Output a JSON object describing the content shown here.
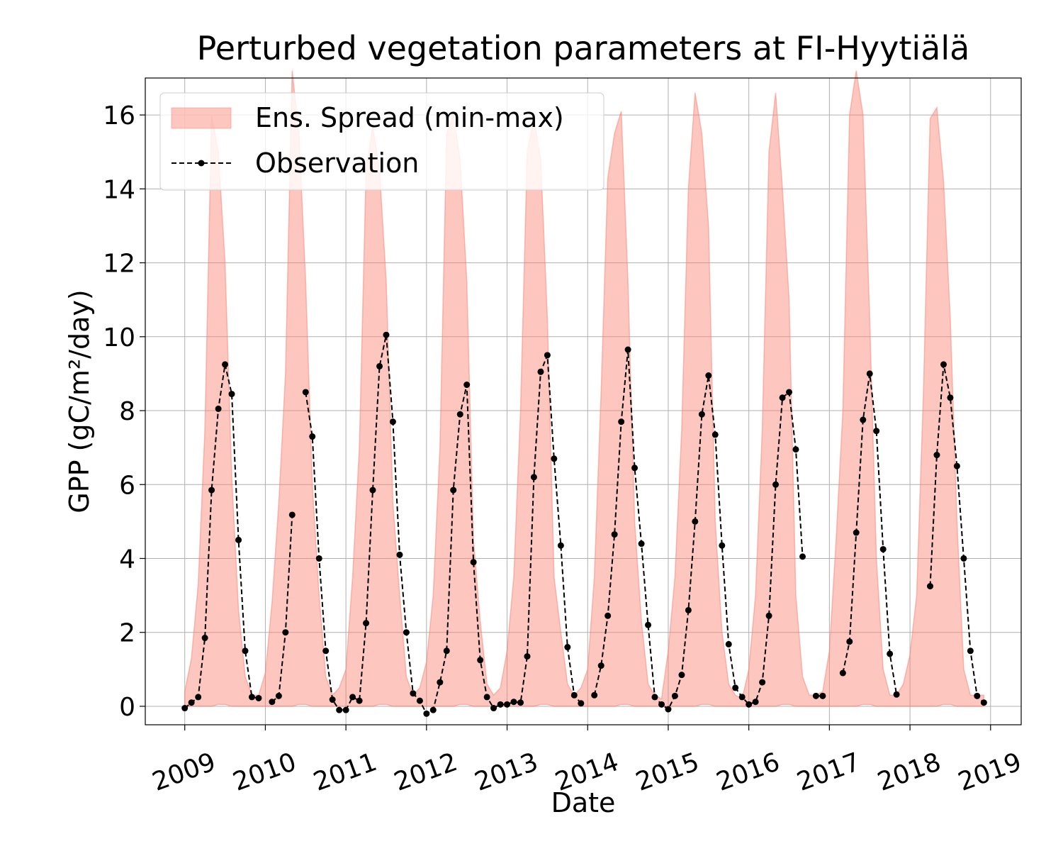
{
  "chart_data": {
    "type": "line",
    "title": "Perturbed vegetation parameters at FI-Hyytiälä",
    "xlabel": "Date",
    "ylabel": "GPP  (gC/m²/day)",
    "xlim": [
      2008.51,
      2019.38
    ],
    "ylim": [
      -0.5,
      17
    ],
    "xticks": [
      2009,
      2010,
      2011,
      2012,
      2013,
      2014,
      2015,
      2016,
      2017,
      2018,
      2019
    ],
    "yticks": [
      0,
      2,
      4,
      6,
      8,
      10,
      12,
      14,
      16
    ],
    "grid": true,
    "legend": "upper left",
    "x": [
      2009,
      2009.083,
      2009.167,
      2009.25,
      2009.333,
      2009.417,
      2009.5,
      2009.583,
      2009.667,
      2009.75,
      2009.833,
      2009.917,
      2010,
      2010.083,
      2010.167,
      2010.25,
      2010.333,
      2010.417,
      2010.5,
      2010.583,
      2010.667,
      2010.75,
      2010.833,
      2010.917,
      2011,
      2011.083,
      2011.167,
      2011.25,
      2011.333,
      2011.417,
      2011.5,
      2011.583,
      2011.667,
      2011.75,
      2011.833,
      2011.917,
      2012,
      2012.083,
      2012.167,
      2012.25,
      2012.333,
      2012.417,
      2012.5,
      2012.583,
      2012.667,
      2012.75,
      2012.833,
      2012.917,
      2013,
      2013.083,
      2013.167,
      2013.25,
      2013.333,
      2013.417,
      2013.5,
      2013.583,
      2013.667,
      2013.75,
      2013.833,
      2013.917,
      2014,
      2014.083,
      2014.167,
      2014.25,
      2014.333,
      2014.417,
      2014.5,
      2014.583,
      2014.667,
      2014.75,
      2014.833,
      2014.917,
      2015,
      2015.083,
      2015.167,
      2015.25,
      2015.333,
      2015.417,
      2015.5,
      2015.583,
      2015.667,
      2015.75,
      2015.833,
      2015.917,
      2016,
      2016.083,
      2016.167,
      2016.25,
      2016.333,
      2016.417,
      2016.5,
      2016.583,
      2016.667,
      2016.75,
      2016.833,
      2016.917,
      2017,
      2017.083,
      2017.167,
      2017.25,
      2017.333,
      2017.417,
      2017.5,
      2017.583,
      2017.667,
      2017.75,
      2017.833,
      2017.917,
      2018,
      2018.083,
      2018.167,
      2018.25,
      2018.333,
      2018.417,
      2018.5,
      2018.583,
      2018.667,
      2018.75,
      2018.833,
      2018.917
    ],
    "series": [
      {
        "name": "Ens. Spread (min-max)",
        "kind": "band",
        "color": "#fa8072",
        "max": [
          0.4,
          1.3,
          3.3,
          7.5,
          16.0,
          15.0,
          12.0,
          6.2,
          2.6,
          0.8,
          0.3,
          0.3,
          0.9,
          2.8,
          5.5,
          9.0,
          17.2,
          15.5,
          11.5,
          6.0,
          3.0,
          0.8,
          0.3,
          0.5,
          1.0,
          3.5,
          7.0,
          14.5,
          15.7,
          14.5,
          11.5,
          5.5,
          3.0,
          0.8,
          0.3,
          0.5,
          1.2,
          3.0,
          7.0,
          15.5,
          16.0,
          14.8,
          11.5,
          4.5,
          2.3,
          0.6,
          0.3,
          0.5,
          1.5,
          3.5,
          8.0,
          15.0,
          15.9,
          14.8,
          10.5,
          3.5,
          2.0,
          0.6,
          0.3,
          0.5,
          1.0,
          3.5,
          8.5,
          14.3,
          15.5,
          16.1,
          11.5,
          5.0,
          2.3,
          0.6,
          0.3,
          0.2,
          1.5,
          3.5,
          7.5,
          14.0,
          16.6,
          15.5,
          13.0,
          5.0,
          2.0,
          0.6,
          0.3,
          0.2,
          1.0,
          3.0,
          7.5,
          15.0,
          16.6,
          14.0,
          11.0,
          3.0,
          0.8,
          0.3,
          0.3,
          0.4,
          1.5,
          4.5,
          8.0,
          16.0,
          17.2,
          16.0,
          10.5,
          4.0,
          1.0,
          0.3,
          0.3,
          0.6,
          1.4,
          3.0,
          8.5,
          15.9,
          16.2,
          14.2,
          10.5,
          5.0,
          1.0,
          0.3,
          0.3,
          0.3
        ],
        "min": [
          0,
          0,
          0,
          0,
          0,
          0.05,
          0.05,
          0,
          0,
          0,
          0,
          0,
          0,
          0,
          0,
          0,
          0,
          0.05,
          0.05,
          0,
          0,
          0,
          0,
          0,
          0,
          0,
          0,
          0,
          0,
          0.05,
          0.05,
          0,
          0,
          0,
          0,
          0,
          0,
          0,
          0,
          0,
          0,
          0.05,
          0.05,
          0,
          0,
          0,
          0,
          0,
          0,
          0,
          0,
          0,
          0,
          0.05,
          0.05,
          0,
          0,
          0,
          0,
          0,
          0,
          0,
          0,
          0,
          0,
          0.05,
          0.05,
          0,
          0,
          0,
          0,
          0,
          0,
          0,
          0,
          0,
          0,
          0.05,
          0.05,
          0,
          0,
          0,
          0,
          0,
          0,
          0,
          0,
          0,
          0,
          0.05,
          0.05,
          0,
          0,
          0,
          0,
          0,
          0,
          0,
          0,
          0,
          0,
          0.05,
          0.05,
          0,
          0,
          0,
          0,
          0,
          0,
          0,
          0,
          0,
          0,
          0.05,
          0.05,
          0,
          0,
          0,
          0,
          0
        ]
      },
      {
        "name": "Observation",
        "kind": "line",
        "color": "#000000",
        "values": [
          -0.05,
          0.1,
          0.25,
          1.85,
          5.85,
          8.05,
          9.25,
          8.45,
          4.5,
          1.5,
          0.25,
          0.22,
          null,
          0.12,
          0.28,
          2.0,
          5.18,
          null,
          8.5,
          7.3,
          4.0,
          1.5,
          0.18,
          -0.1,
          -0.1,
          0.25,
          0.15,
          2.25,
          5.85,
          9.2,
          10.05,
          7.7,
          4.1,
          2.0,
          0.35,
          0.15,
          -0.2,
          -0.1,
          0.65,
          1.5,
          5.85,
          7.9,
          8.7,
          3.9,
          1.25,
          0.25,
          -0.05,
          0.05,
          0.05,
          0.12,
          0.1,
          1.35,
          6.2,
          9.05,
          9.5,
          6.7,
          4.35,
          1.6,
          0.3,
          0.08,
          null,
          0.3,
          1.1,
          2.45,
          4.65,
          7.7,
          9.65,
          6.45,
          4.4,
          2.2,
          0.25,
          0.05,
          -0.08,
          0.28,
          0.85,
          2.6,
          5.0,
          7.9,
          8.95,
          7.35,
          4.35,
          1.68,
          0.5,
          0.25,
          0.05,
          0.12,
          0.65,
          2.45,
          6.0,
          8.35,
          8.5,
          6.95,
          4.05,
          null,
          0.28,
          0.28,
          null,
          null,
          0.9,
          1.75,
          4.7,
          7.75,
          9.0,
          7.45,
          4.25,
          1.42,
          0.32,
          null,
          null,
          null,
          null,
          3.25,
          6.8,
          9.25,
          8.35,
          6.5,
          4.0,
          1.5,
          0.28,
          0.1
        ]
      }
    ]
  }
}
